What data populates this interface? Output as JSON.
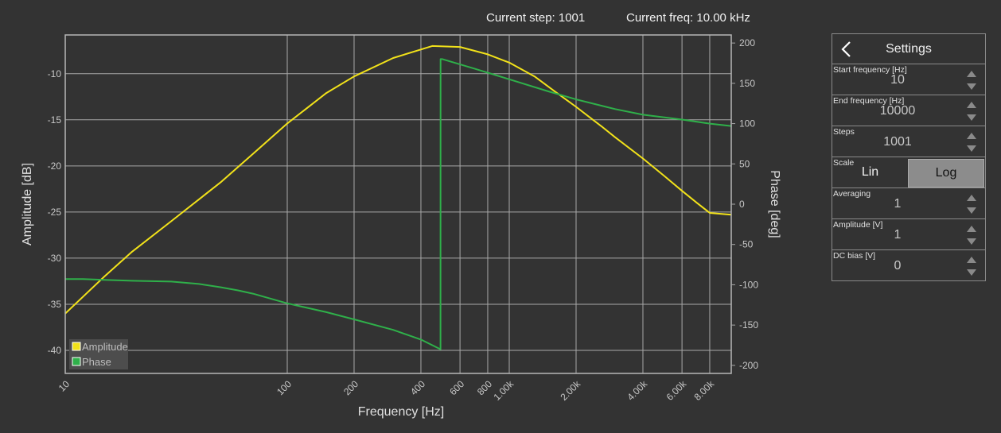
{
  "status": {
    "current_step": "Current step: 1001",
    "current_freq": "Current freq: 10.00 kHz"
  },
  "settings": {
    "title": "Settings",
    "start_frequency": {
      "label": "Start frequency [Hz]",
      "value": "10"
    },
    "end_frequency": {
      "label": "End frequency [Hz]",
      "value": "10000"
    },
    "steps": {
      "label": "Steps",
      "value": "1001"
    },
    "scale": {
      "label": "Scale",
      "options": [
        "Lin",
        "Log"
      ],
      "selected": "Log"
    },
    "averaging": {
      "label": "Averaging",
      "value": "1"
    },
    "amplitude": {
      "label": "Amplitude [V]",
      "value": "1"
    },
    "dc_bias": {
      "label": "DC bias [V]",
      "value": "0"
    }
  },
  "colors": {
    "amplitude": "#f2e21a",
    "phase": "#2fb04a",
    "grid": "#a8a8a8",
    "background": "#333333"
  },
  "chart_data": {
    "type": "line",
    "xlabel": "Frequency [Hz]",
    "ylabel": "Amplitude [dB]",
    "y2label": "Phase [deg]",
    "xscale": "log",
    "xlim": [
      10,
      10000
    ],
    "ylim": [
      -42.5,
      -5.8
    ],
    "y2lim": [
      -210,
      210
    ],
    "grid": true,
    "legend_position": "bottom-left",
    "x_ticks": [
      10,
      100,
      200,
      400,
      600,
      800,
      1000,
      2000,
      4000,
      6000,
      8000
    ],
    "x_tick_labels": [
      "10",
      "100",
      "200",
      "400",
      "600",
      "800",
      "1.00k",
      "2.00k",
      "4.00k",
      "6.00k",
      "8.00k"
    ],
    "y_ticks": [
      -10,
      -15,
      -20,
      -25,
      -30,
      -35,
      -40
    ],
    "y_tick_labels": [
      "-10",
      "-15",
      "-20",
      "-25",
      "-30",
      "-35",
      "-40"
    ],
    "y2_ticks": [
      200,
      150,
      100,
      50,
      0,
      -50,
      -100,
      -150,
      -200
    ],
    "y2_tick_labels": [
      "200",
      "150",
      "100",
      "50",
      "0",
      "-50",
      "-100",
      "-150",
      "-200"
    ],
    "series": [
      {
        "name": "Amplitude",
        "axis": "left",
        "x": [
          10,
          12,
          15,
          20,
          30,
          50,
          70,
          100,
          150,
          200,
          300,
          450,
          600,
          800,
          1000,
          1300,
          1600,
          2000,
          2600,
          3000,
          4000,
          5000,
          6000,
          7000,
          8000,
          10000
        ],
        "y": [
          -36,
          -34.2,
          -32,
          -29.3,
          -26,
          -21.8,
          -18.7,
          -15.4,
          -12.1,
          -10.3,
          -8.3,
          -7.0,
          -7.1,
          -7.9,
          -8.8,
          -10.3,
          -11.9,
          -13.6,
          -15.7,
          -16.9,
          -19.2,
          -21.1,
          -22.7,
          -24.0,
          -25.1,
          -25.3
        ]
      },
      {
        "name": "Phase",
        "axis": "right",
        "x": [
          10,
          12,
          20,
          30,
          40,
          50,
          60,
          70,
          100,
          150,
          200,
          300,
          400,
          490,
          490.5,
          500,
          700,
          1000,
          1500,
          2000,
          3000,
          4000,
          6000,
          8000,
          10000
        ],
        "y": [
          -93,
          -93,
          -95,
          -96,
          -99,
          -103,
          -107,
          -111,
          -123,
          -134,
          -143,
          -156,
          -168,
          -180,
          180,
          180,
          168,
          155,
          140,
          130,
          118,
          111,
          105,
          100,
          97
        ]
      }
    ]
  }
}
